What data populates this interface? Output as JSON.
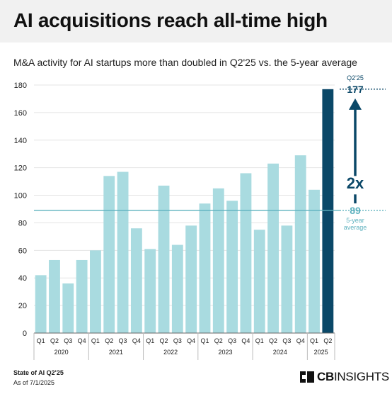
{
  "header": {
    "title": "AI acquisitions reach all-time high",
    "subtitle": "M&A activity for AI startups more than doubled in Q2'25 vs. the 5-year average"
  },
  "footer": {
    "report": "State of AI Q2'25",
    "as_of": "As of 7/1/2025",
    "logo_bold": "CB",
    "logo_light": "INSIGHTS"
  },
  "colors": {
    "bar": "#a9dbe0",
    "highlight_bar": "#0b4868",
    "average_line": "#5fb2bf",
    "grid": "#e4e4e4"
  },
  "chart_data": {
    "type": "bar",
    "title": "",
    "xlabel": "",
    "ylabel": "",
    "ylim": [
      0,
      180
    ],
    "yticks": [
      0,
      20,
      40,
      60,
      80,
      100,
      120,
      140,
      160,
      180
    ],
    "grid": true,
    "categories": [
      "Q1",
      "Q2",
      "Q3",
      "Q4",
      "Q1",
      "Q2",
      "Q3",
      "Q4",
      "Q1",
      "Q2",
      "Q3",
      "Q4",
      "Q1",
      "Q2",
      "Q3",
      "Q4",
      "Q1",
      "Q2",
      "Q3",
      "Q4",
      "Q1",
      "Q2"
    ],
    "years": [
      {
        "label": "2020",
        "quarters": 4
      },
      {
        "label": "2021",
        "quarters": 4
      },
      {
        "label": "2022",
        "quarters": 4
      },
      {
        "label": "2023",
        "quarters": 4
      },
      {
        "label": "2024",
        "quarters": 4
      },
      {
        "label": "2025",
        "quarters": 2
      }
    ],
    "values": [
      42,
      53,
      36,
      53,
      60,
      114,
      117,
      76,
      61,
      107,
      64,
      78,
      94,
      105,
      96,
      116,
      75,
      123,
      78,
      129,
      104,
      177
    ],
    "highlight_index": 21,
    "reference_line": {
      "value": 89,
      "label": "89",
      "caption_line1": "5-year",
      "caption_line2": "average"
    },
    "callout": {
      "label": "Q2'25",
      "value": "177",
      "multiplier": "2x"
    }
  }
}
